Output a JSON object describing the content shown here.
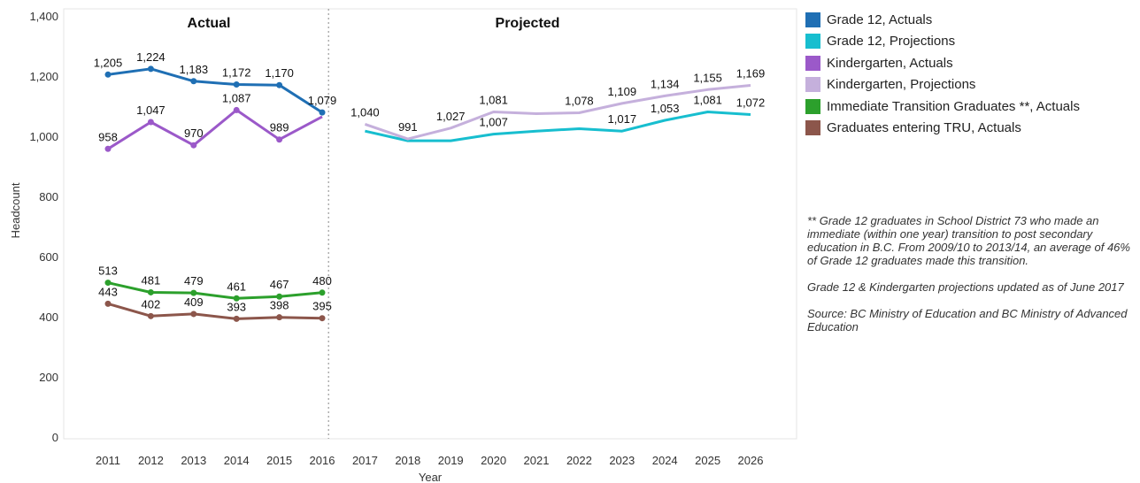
{
  "chart_data": {
    "type": "line",
    "x": [
      2011,
      2012,
      2013,
      2014,
      2015,
      2016,
      2017,
      2018,
      2019,
      2020,
      2021,
      2022,
      2023,
      2024,
      2025,
      2026
    ],
    "xlabel": "Year",
    "ylabel": "Headcount",
    "ylim": [
      0,
      1400
    ],
    "yticks": [
      0,
      200,
      400,
      600,
      800,
      1000,
      1200,
      1400
    ],
    "ytick_labels": [
      "0",
      "200",
      "400",
      "600",
      "800",
      "1,000",
      "1,200",
      "1,400"
    ],
    "panel_labels": {
      "actual": "Actual",
      "projected": "Projected"
    },
    "legend_position": "right",
    "series": [
      {
        "name": "Grade 12, Actuals",
        "color": "#1f6fb4",
        "markers": true,
        "x": [
          2011,
          2012,
          2013,
          2014,
          2015,
          2016
        ],
        "values": [
          1205,
          1224,
          1183,
          1172,
          1170,
          1079
        ],
        "labels": [
          "1,205",
          "1,224",
          "1,183",
          "1,172",
          "1,170",
          "1,079"
        ]
      },
      {
        "name": "Grade 12, Projections",
        "color": "#17becf",
        "markers": false,
        "x": [
          2017,
          2018,
          2019,
          2020,
          2021,
          2022,
          2023,
          2024,
          2025,
          2026
        ],
        "values": [
          1017,
          985,
          985,
          1007,
          1017,
          1025,
          1017,
          1053,
          1081,
          1072
        ],
        "labels": [
          "",
          "",
          "",
          "1,007",
          "",
          "",
          "1,017",
          "1,053",
          "1,081",
          "1,072"
        ]
      },
      {
        "name": "Kindergarten, Actuals",
        "color": "#9b59c9",
        "markers": true,
        "x": [
          2011,
          2012,
          2013,
          2014,
          2015,
          2016
        ],
        "values": [
          958,
          1047,
          970,
          1087,
          989,
          1065
        ],
        "labels": [
          "958",
          "1,047",
          "970",
          "1,087",
          "989",
          ""
        ]
      },
      {
        "name": "Kindergarten, Projections",
        "color": "#c5b0dc",
        "markers": false,
        "x": [
          2017,
          2018,
          2019,
          2020,
          2021,
          2022,
          2023,
          2024,
          2025,
          2026
        ],
        "values": [
          1040,
          991,
          1027,
          1081,
          1075,
          1078,
          1109,
          1134,
          1155,
          1169
        ],
        "labels": [
          "1,040",
          "991",
          "1,027",
          "1,081",
          "",
          "1,078",
          "1,109",
          "1,134",
          "1,155",
          "1,169"
        ]
      },
      {
        "name": "Immediate Transition Graduates **, Actuals",
        "color": "#2ca02c",
        "markers": true,
        "x": [
          2011,
          2012,
          2013,
          2014,
          2015,
          2016
        ],
        "values": [
          513,
          481,
          479,
          461,
          467,
          480
        ],
        "labels": [
          "513",
          "481",
          "479",
          "461",
          "467",
          "480"
        ]
      },
      {
        "name": "Graduates entering TRU, Actuals",
        "color": "#8c564b",
        "markers": true,
        "x": [
          2011,
          2012,
          2013,
          2014,
          2015,
          2016
        ],
        "values": [
          443,
          402,
          409,
          393,
          398,
          395
        ],
        "labels": [
          "443",
          "402",
          "409",
          "393",
          "398",
          "395"
        ]
      }
    ]
  },
  "notes": [
    "** Grade 12 graduates in School District 73 who made an immediate (within one year) transition to post secondary education in B.C. From 2009/10 to 2013/14, an average of 46% of Grade 12 graduates made this transition.",
    "Grade 12 & Kindergarten projections updated as of June 2017",
    "Source: BC Ministry of Education and BC Ministry of Advanced Education"
  ]
}
